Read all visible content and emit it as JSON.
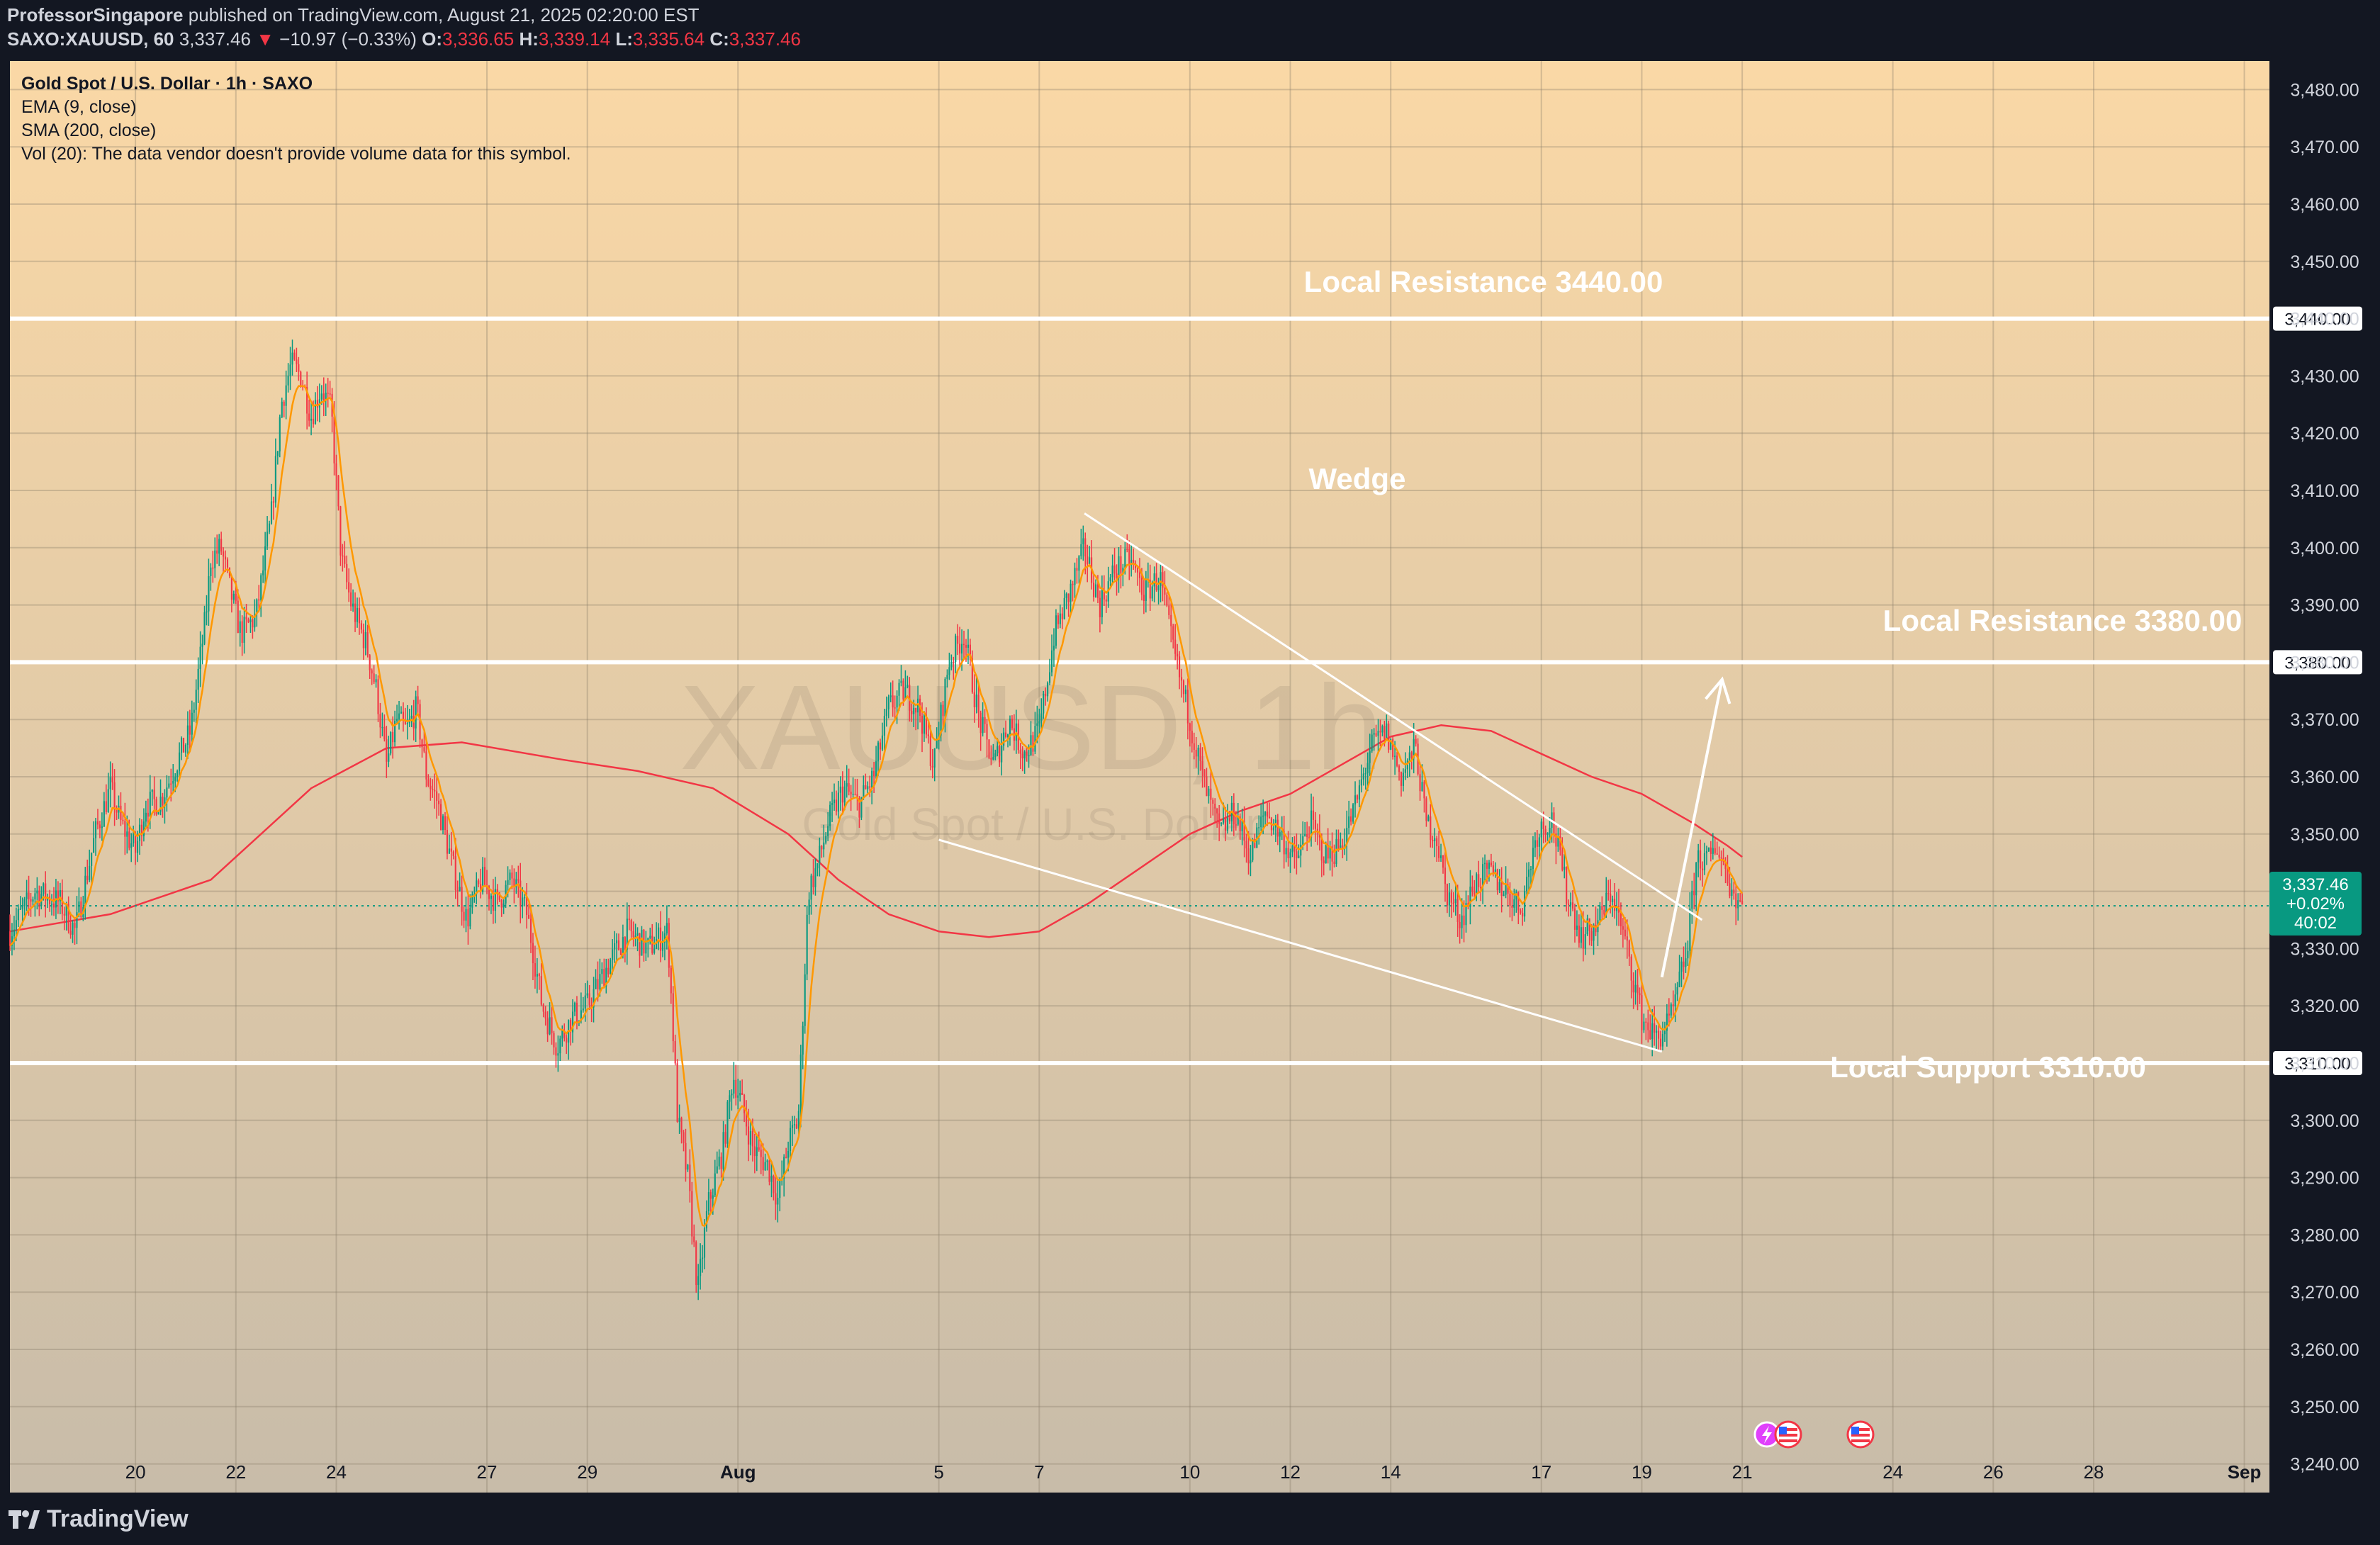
{
  "header": {
    "author": "ProfessorSingapore",
    "published_text": "published on TradingView.com, August 21, 2025 02:20:00 EST",
    "symbol_interval": "SAXO:XAUUSD, 60",
    "last": "3,337.46",
    "change": "−10.97 (−0.33%)",
    "open_label": "O:",
    "open": "3,336.65",
    "high_label": "H:",
    "high": "3,339.14",
    "low_label": "L:",
    "low": "3,335.64",
    "close_label": "C:",
    "close": "3,337.46"
  },
  "legend": {
    "title": "Gold Spot / U.S. Dollar · 1h · SAXO",
    "ema": "EMA (9, close)",
    "sma": "SMA (200, close)",
    "vol": "Vol (20): The data vendor doesn't provide volume data for this symbol."
  },
  "watermark": {
    "symbol": "XAUUSD, 1h",
    "name": "Gold Spot / U.S. Dollar"
  },
  "annotations": {
    "resistance_3440": "Local Resistance 3440.00",
    "resistance_3380": "Local Resistance 3380.00",
    "support_3310": "Local Support 3310.00",
    "wedge": "Wedge"
  },
  "price_tag": {
    "price": "3,337.46",
    "change": "+0.02%",
    "countdown": "40:02"
  },
  "footer": {
    "brand": "TradingView"
  },
  "colors": {
    "up": "#089981",
    "down": "#f23645",
    "ema": "#ff9800",
    "sma": "#f23645",
    "bg_top": "#fad8a6",
    "bg_bottom": "#c8bca9",
    "axis_bg": "#131722",
    "tag": "#089981"
  },
  "icons": [
    "tradingview-logo-icon",
    "lightning-event-icon",
    "us-flag-event-icon"
  ],
  "chart_data": {
    "type": "candlestick",
    "symbol": "SAXO:XAUUSD",
    "interval": "1h",
    "ylim": [
      3235,
      3485
    ],
    "yticks": [
      3240,
      3250,
      3260,
      3270,
      3280,
      3290,
      3300,
      3310,
      3320,
      3330,
      3340,
      3350,
      3360,
      3370,
      3380,
      3390,
      3400,
      3410,
      3420,
      3430,
      3440,
      3450,
      3460,
      3470,
      3480
    ],
    "yaxis_labels": [
      "3,240.00",
      "3,250.00",
      "3,260.00",
      "3,270.00",
      "3,280.00",
      "3,290.00",
      "3,300.00",
      "3,310.00",
      "3,320.00",
      "3,330.00",
      "3,340.00",
      "3,350.00",
      "3,360.00",
      "3,370.00",
      "3,380.00",
      "3,390.00",
      "3,400.00",
      "3,410.00",
      "3,420.00",
      "3,430.00",
      "3,440.00",
      "3,450.00",
      "3,460.00",
      "3,470.00",
      "3,480.00"
    ],
    "xaxis_labels": [
      "20",
      "22",
      "24",
      "27",
      "29",
      "Aug",
      "5",
      "7",
      "10",
      "12",
      "14",
      "17",
      "19",
      "21",
      "24",
      "26",
      "28",
      "Sep"
    ],
    "xaxis_label_days": [
      -0.5,
      1.5,
      3.5,
      6.5,
      8.5,
      11.5,
      15.5,
      17.5,
      20.5,
      22.5,
      24.5,
      27.5,
      29.5,
      31.5,
      34.5,
      36.5,
      38.5,
      41.5
    ],
    "x_range_days": [
      -3,
      42
    ],
    "horizontal_levels": [
      3440,
      3380,
      3310
    ],
    "wedge_upper": [
      [
        18.4,
        3406
      ],
      [
        30.7,
        3335
      ]
    ],
    "wedge_lower": [
      [
        15.5,
        3349
      ],
      [
        29.9,
        3312
      ]
    ],
    "breakout_arrow": [
      [
        29.9,
        3325
      ],
      [
        31.1,
        3377
      ]
    ],
    "ema_label": "EMA (9, close)",
    "sma_label": "SMA (200, close)",
    "close_path": [
      [
        -3,
        3333
      ],
      [
        -2.5,
        3340
      ],
      [
        -2,
        3338
      ],
      [
        -1.7,
        3333
      ],
      [
        -1.3,
        3350
      ],
      [
        -1,
        3358
      ],
      [
        -0.8,
        3352
      ],
      [
        -0.5,
        3347
      ],
      [
        -0.3,
        3355
      ],
      [
        0,
        3356
      ],
      [
        0.3,
        3362
      ],
      [
        0.6,
        3368
      ],
      [
        0.9,
        3388
      ],
      [
        1.0,
        3398
      ],
      [
        1.2,
        3400
      ],
      [
        1.4,
        3392
      ],
      [
        1.6,
        3385
      ],
      [
        1.9,
        3388
      ],
      [
        2.2,
        3405
      ],
      [
        2.4,
        3425
      ],
      [
        2.6,
        3432
      ],
      [
        2.8,
        3430
      ],
      [
        3.0,
        3423
      ],
      [
        3.2,
        3428
      ],
      [
        3.4,
        3424
      ],
      [
        3.6,
        3398
      ],
      [
        3.8,
        3390
      ],
      [
        4.1,
        3383
      ],
      [
        4.3,
        3375
      ],
      [
        4.5,
        3362
      ],
      [
        4.7,
        3370
      ],
      [
        4.9,
        3368
      ],
      [
        5.1,
        3372
      ],
      [
        5.3,
        3360
      ],
      [
        5.5,
        3356
      ],
      [
        5.8,
        3345
      ],
      [
        6.1,
        3335
      ],
      [
        6.4,
        3342
      ],
      [
        6.7,
        3338
      ],
      [
        7.0,
        3342
      ],
      [
        7.3,
        3336
      ],
      [
        7.6,
        3320
      ],
      [
        7.9,
        3313
      ],
      [
        8.2,
        3318
      ],
      [
        8.5,
        3320
      ],
      [
        8.9,
        3327
      ],
      [
        9.3,
        3333
      ],
      [
        9.7,
        3330
      ],
      [
        10.1,
        3333
      ],
      [
        10.3,
        3300
      ],
      [
        10.5,
        3290
      ],
      [
        10.7,
        3270
      ],
      [
        10.9,
        3285
      ],
      [
        11.2,
        3295
      ],
      [
        11.4,
        3308
      ],
      [
        11.6,
        3302
      ],
      [
        11.8,
        3295
      ],
      [
        12.1,
        3292
      ],
      [
        12.3,
        3286
      ],
      [
        12.5,
        3296
      ],
      [
        12.7,
        3300
      ],
      [
        12.9,
        3340
      ],
      [
        13.1,
        3345
      ],
      [
        13.3,
        3352
      ],
      [
        13.6,
        3358
      ],
      [
        13.9,
        3355
      ],
      [
        14.2,
        3360
      ],
      [
        14.5,
        3372
      ],
      [
        14.8,
        3375
      ],
      [
        15.1,
        3372
      ],
      [
        15.4,
        3362
      ],
      [
        15.7,
        3380
      ],
      [
        16.0,
        3385
      ],
      [
        16.3,
        3370
      ],
      [
        16.6,
        3362
      ],
      [
        16.9,
        3370
      ],
      [
        17.2,
        3364
      ],
      [
        17.5,
        3368
      ],
      [
        17.8,
        3385
      ],
      [
        18.1,
        3392
      ],
      [
        18.4,
        3400
      ],
      [
        18.7,
        3390
      ],
      [
        19.0,
        3396
      ],
      [
        19.3,
        3398
      ],
      [
        19.6,
        3392
      ],
      [
        19.9,
        3395
      ],
      [
        20.1,
        3385
      ],
      [
        20.3,
        3377
      ],
      [
        20.5,
        3370
      ],
      [
        20.8,
        3358
      ],
      [
        21.1,
        3350
      ],
      [
        21.4,
        3354
      ],
      [
        21.7,
        3346
      ],
      [
        22.0,
        3354
      ],
      [
        22.3,
        3350
      ],
      [
        22.6,
        3345
      ],
      [
        22.9,
        3352
      ],
      [
        23.2,
        3346
      ],
      [
        23.5,
        3348
      ],
      [
        23.8,
        3355
      ],
      [
        24.1,
        3365
      ],
      [
        24.4,
        3368
      ],
      [
        24.7,
        3360
      ],
      [
        25.0,
        3365
      ],
      [
        25.2,
        3352
      ],
      [
        25.4,
        3350
      ],
      [
        25.6,
        3340
      ],
      [
        25.9,
        3335
      ],
      [
        26.2,
        3342
      ],
      [
        26.5,
        3343
      ],
      [
        26.8,
        3340
      ],
      [
        27.1,
        3337
      ],
      [
        27.4,
        3350
      ],
      [
        27.7,
        3353
      ],
      [
        28.0,
        3340
      ],
      [
        28.3,
        3332
      ],
      [
        28.6,
        3334
      ],
      [
        28.9,
        3340
      ],
      [
        29.2,
        3330
      ],
      [
        29.5,
        3318
      ],
      [
        29.8,
        3314
      ],
      [
        30.1,
        3318
      ],
      [
        30.4,
        3330
      ],
      [
        30.6,
        3346
      ],
      [
        30.8,
        3345
      ],
      [
        31.0,
        3348
      ],
      [
        31.2,
        3343
      ],
      [
        31.3,
        3340
      ],
      [
        31.5,
        3337.46
      ]
    ],
    "sma200_path": [
      [
        -3,
        3333
      ],
      [
        -1,
        3336
      ],
      [
        1,
        3342
      ],
      [
        3,
        3358
      ],
      [
        4.5,
        3365
      ],
      [
        6,
        3366
      ],
      [
        8,
        3363
      ],
      [
        9.5,
        3361
      ],
      [
        11,
        3358
      ],
      [
        12.5,
        3350
      ],
      [
        13.5,
        3342
      ],
      [
        14.5,
        3336
      ],
      [
        15.5,
        3333
      ],
      [
        16.5,
        3332
      ],
      [
        17.5,
        3333
      ],
      [
        18.5,
        3338
      ],
      [
        19.5,
        3344
      ],
      [
        20.5,
        3350
      ],
      [
        21.5,
        3354
      ],
      [
        22.5,
        3357
      ],
      [
        23.5,
        3362
      ],
      [
        24.5,
        3367
      ],
      [
        25.5,
        3369
      ],
      [
        26.5,
        3368
      ],
      [
        27.5,
        3364
      ],
      [
        28.5,
        3360
      ],
      [
        29.5,
        3357
      ],
      [
        30.5,
        3352
      ],
      [
        31.2,
        3348
      ],
      [
        31.5,
        3346
      ]
    ]
  }
}
